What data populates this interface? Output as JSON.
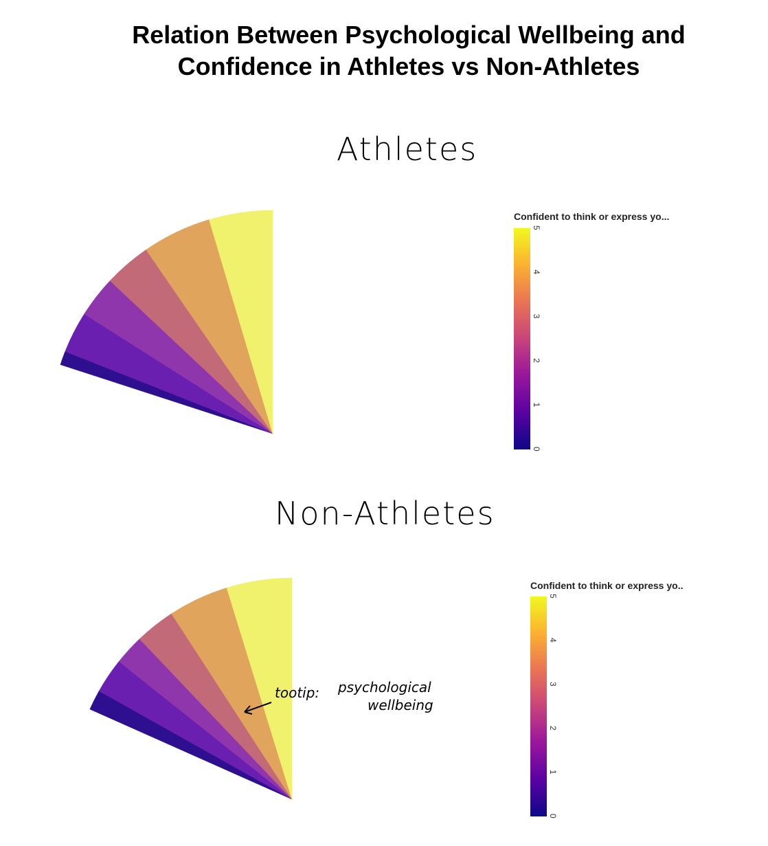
{
  "title_lines": [
    "Relation Between Psychological Wellbeing and",
    "Confidence in Athletes vs Non-Athletes"
  ],
  "annotations": {
    "athletes_label": "Athletes",
    "non_athletes_label": "Non-Athletes",
    "tooltip_label": "tootip:",
    "tooltip_text_1": "psychological",
    "tooltip_text_2": "wellbeing"
  },
  "colors": {
    "scale": [
      "#0d0887",
      "#5b02a3",
      "#9a179b",
      "#cb4678",
      "#eb7852",
      "#fbb32f",
      "#f0f921"
    ],
    "v0": "#2e0f8f",
    "v1": "#6a1fb0",
    "v2": "#8f36ad",
    "v3": "#c26a78",
    "v4": "#e0a45c",
    "v5": "#f0f26e"
  },
  "chart_data": [
    {
      "type": "polar-bar",
      "group": "Athletes",
      "colorbar_title": "Confident to think or express yo...",
      "colorbar_ticks": [
        "0",
        "1",
        "2",
        "3",
        "4",
        "5"
      ],
      "range": [
        0,
        5
      ],
      "segments": [
        {
          "value": 0,
          "share": 0.05
        },
        {
          "value": 1,
          "share": 0.15
        },
        {
          "value": 2,
          "share": 0.15
        },
        {
          "value": 3,
          "share": 0.17
        },
        {
          "value": 4,
          "share": 0.25
        },
        {
          "value": 5,
          "share": 0.23
        }
      ]
    },
    {
      "type": "polar-bar",
      "group": "Non-Athletes",
      "colorbar_title": "Confident to think or express yo..",
      "colorbar_ticks": [
        "0",
        "1",
        "2",
        "3",
        "4",
        "5"
      ],
      "range": [
        0,
        5
      ],
      "segments": [
        {
          "value": 0,
          "share": 0.08
        },
        {
          "value": 1,
          "share": 0.14
        },
        {
          "value": 2,
          "share": 0.12
        },
        {
          "value": 3,
          "share": 0.16
        },
        {
          "value": 4,
          "share": 0.24
        },
        {
          "value": 5,
          "share": 0.26
        }
      ]
    }
  ]
}
